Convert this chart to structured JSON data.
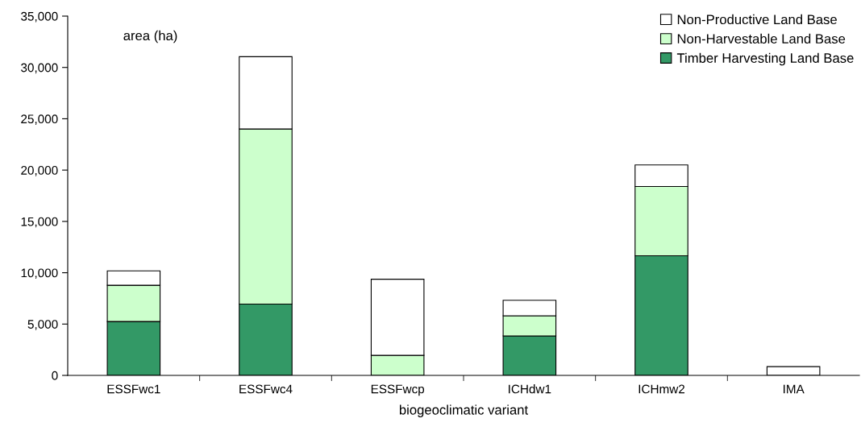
{
  "chart_data": {
    "type": "bar",
    "stacked": true,
    "xlabel": "biogeoclimatic variant",
    "ylabel": "area (ha)",
    "categories": [
      "ESSFwc1",
      "ESSFwc4",
      "ESSFwcp",
      "ICHdw1",
      "ICHmw2",
      "IMA"
    ],
    "series": [
      {
        "name": "Timber Harvesting Land Base",
        "color": "#339966",
        "values": [
          5250,
          6950,
          0,
          3840,
          11650,
          0
        ]
      },
      {
        "name": "Non-Harvestable Land Base",
        "color": "#ccffcc",
        "values": [
          3530,
          17050,
          1950,
          1970,
          6750,
          0
        ]
      },
      {
        "name": "Non-Productive Land Base",
        "color": "#ffffff",
        "values": [
          1400,
          7050,
          7420,
          1510,
          2100,
          850
        ]
      }
    ],
    "ylim": [
      0,
      35000
    ],
    "yticks": [
      {
        "value": 0,
        "label": "0"
      },
      {
        "value": 5000,
        "label": "5,000"
      },
      {
        "value": 10000,
        "label": "10,000"
      },
      {
        "value": 15000,
        "label": "15,000"
      },
      {
        "value": 20000,
        "label": "20,000"
      },
      {
        "value": 25000,
        "label": "25,000"
      },
      {
        "value": 30000,
        "label": "30,000"
      },
      {
        "value": 35000,
        "label": "35,000"
      }
    ],
    "grid": false,
    "legend": "top right"
  }
}
